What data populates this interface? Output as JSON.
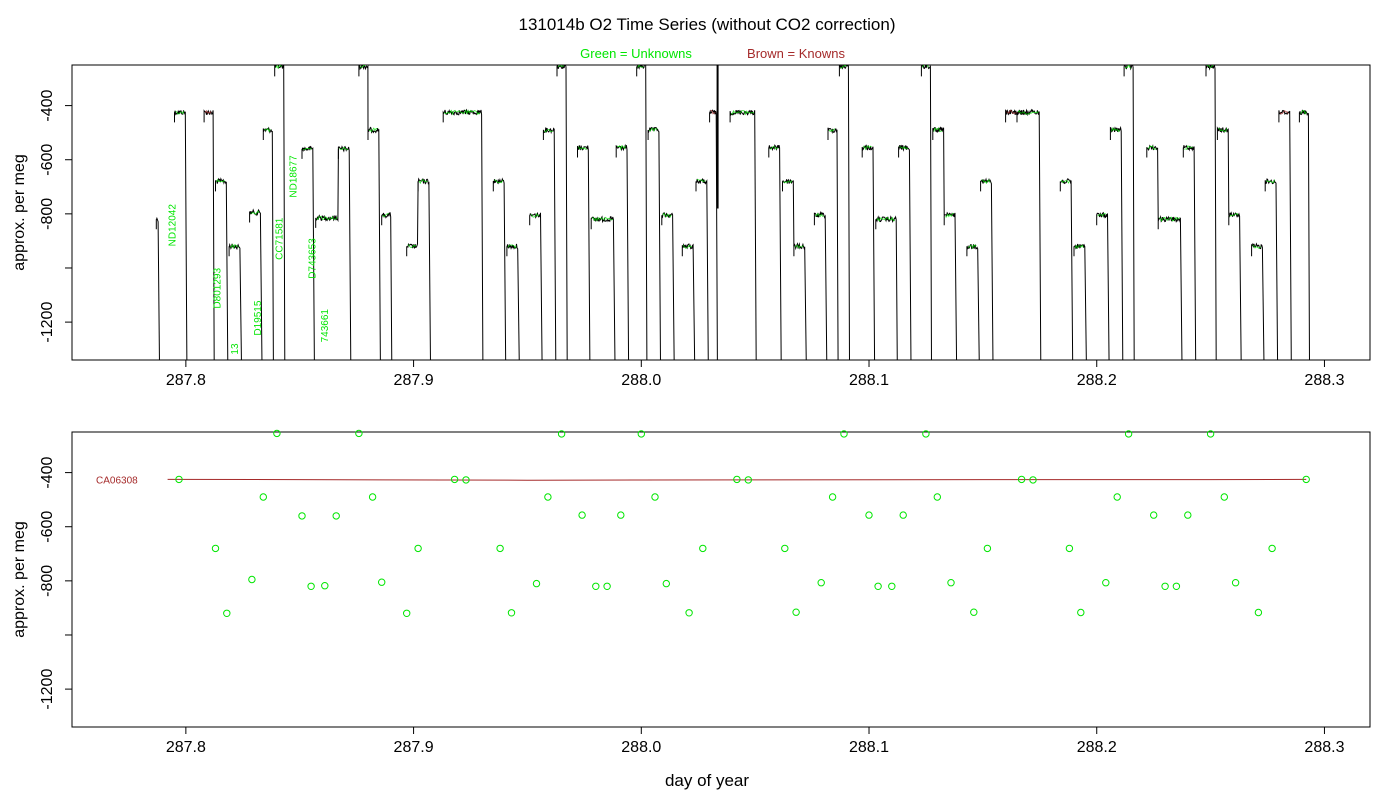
{
  "title": "131014b   O2 Time Series (without CO2 correction)",
  "legend": {
    "unknowns": "Green = Unknowns",
    "knowns": "Brown = Knowns"
  },
  "colors": {
    "unknown": "#00e600",
    "known": "#a52a2a",
    "trace": "#000000",
    "axis": "#000000"
  },
  "xlabel": "day of year",
  "chart_data": [
    {
      "type": "line",
      "ylabel": "approx. per meg",
      "xlim": [
        287.75,
        288.32
      ],
      "ylim": [
        -1340,
        -250
      ],
      "x_ticks": [
        287.8,
        287.9,
        288.0,
        288.1,
        288.2,
        288.3
      ],
      "x_tick_labels": [
        "287.8",
        "287.9",
        "288.0",
        "288.1",
        "288.2",
        "288.3"
      ],
      "y_ticks": [
        -400,
        -600,
        -800,
        -1000,
        -1200
      ],
      "y_tick_labels": [
        "-400",
        "-600",
        "-800",
        "",
        "-1200"
      ],
      "sample_labels": [
        {
          "text": "ND12042",
          "x": 287.7955,
          "y": -920
        },
        {
          "text": "D801293",
          "x": 287.8153,
          "y": -1150
        },
        {
          "text": "CC71581",
          "x": 287.8425,
          "y": -970
        },
        {
          "text": "ND18677",
          "x": 287.8485,
          "y": -740
        },
        {
          "text": "D743653",
          "x": 287.857,
          "y": -1040
        },
        {
          "text": "D19515",
          "x": 287.833,
          "y": -1250
        },
        {
          "text": "743661",
          "x": 287.8625,
          "y": -1275
        },
        {
          "text": "13",
          "x": 287.823,
          "y": -1320
        }
      ],
      "spike": {
        "x": 288.0335,
        "y_top": -250,
        "y_bottom": -780
      },
      "segments": [
        {
          "x": [
            287.787,
            287.788
          ],
          "y": -820,
          "class": "unknown"
        },
        {
          "x": [
            287.795,
            287.8
          ],
          "y": -425,
          "class": "unknown"
        },
        {
          "x": [
            287.808,
            287.812
          ],
          "y": -425,
          "class": "known"
        },
        {
          "x": [
            287.813,
            287.818
          ],
          "y": -680,
          "class": "unknown"
        },
        {
          "x": [
            287.819,
            287.824
          ],
          "y": -920,
          "class": "unknown"
        },
        {
          "x": [
            287.828,
            287.833
          ],
          "y": -795,
          "class": "unknown"
        },
        {
          "x": [
            287.834,
            287.838
          ],
          "y": -490,
          "class": "unknown"
        },
        {
          "x": [
            287.839,
            287.843
          ],
          "y": -255,
          "class": "unknown"
        },
        {
          "x": [
            287.851,
            287.856
          ],
          "y": -560,
          "class": "unknown"
        },
        {
          "x": [
            287.857,
            287.867
          ],
          "y": -815,
          "class": "unknown"
        },
        {
          "x": [
            287.867,
            287.872
          ],
          "y": -560,
          "class": "unknown"
        },
        {
          "x": [
            287.876,
            287.88
          ],
          "y": -255,
          "class": "unknown"
        },
        {
          "x": [
            287.88,
            287.885
          ],
          "y": -490,
          "class": "unknown"
        },
        {
          "x": [
            287.886,
            287.89
          ],
          "y": -805,
          "class": "unknown"
        },
        {
          "x": [
            287.897,
            287.902
          ],
          "y": -920,
          "class": "unknown"
        },
        {
          "x": [
            287.902,
            287.907
          ],
          "y": -680,
          "class": "unknown"
        },
        {
          "x": [
            287.913,
            287.93
          ],
          "y": -425,
          "class": "unknown"
        },
        {
          "x": [
            287.935,
            287.94
          ],
          "y": -680,
          "class": "unknown"
        },
        {
          "x": [
            287.941,
            287.946
          ],
          "y": -920,
          "class": "unknown"
        },
        {
          "x": [
            287.951,
            287.956
          ],
          "y": -805,
          "class": "unknown"
        },
        {
          "x": [
            287.957,
            287.962
          ],
          "y": -490,
          "class": "unknown"
        },
        {
          "x": [
            287.963,
            287.967
          ],
          "y": -255,
          "class": "unknown"
        },
        {
          "x": [
            287.972,
            287.977
          ],
          "y": -555,
          "class": "unknown"
        },
        {
          "x": [
            287.978,
            287.988
          ],
          "y": -820,
          "class": "unknown"
        },
        {
          "x": [
            287.989,
            287.994
          ],
          "y": -555,
          "class": "unknown"
        },
        {
          "x": [
            287.998,
            288.002
          ],
          "y": -255,
          "class": "unknown"
        },
        {
          "x": [
            288.003,
            288.008
          ],
          "y": -490,
          "class": "unknown"
        },
        {
          "x": [
            288.009,
            288.014
          ],
          "y": -805,
          "class": "unknown"
        },
        {
          "x": [
            288.018,
            288.023
          ],
          "y": -920,
          "class": "unknown"
        },
        {
          "x": [
            288.024,
            288.029
          ],
          "y": -680,
          "class": "unknown"
        },
        {
          "x": [
            288.03,
            288.033
          ],
          "y": -425,
          "class": "known"
        },
        {
          "x": [
            288.039,
            288.05
          ],
          "y": -425,
          "class": "unknown"
        },
        {
          "x": [
            288.056,
            288.061
          ],
          "y": -555,
          "class": "unknown"
        },
        {
          "x": [
            288.062,
            288.067
          ],
          "y": -680,
          "class": "unknown"
        },
        {
          "x": [
            288.067,
            288.072
          ],
          "y": -920,
          "class": "unknown"
        },
        {
          "x": [
            288.076,
            288.081
          ],
          "y": -805,
          "class": "unknown"
        },
        {
          "x": [
            288.082,
            288.086
          ],
          "y": -490,
          "class": "unknown"
        },
        {
          "x": [
            288.087,
            288.091
          ],
          "y": -255,
          "class": "unknown"
        },
        {
          "x": [
            288.097,
            288.102
          ],
          "y": -555,
          "class": "unknown"
        },
        {
          "x": [
            288.103,
            288.112
          ],
          "y": -820,
          "class": "unknown"
        },
        {
          "x": [
            288.113,
            288.118
          ],
          "y": -555,
          "class": "unknown"
        },
        {
          "x": [
            288.123,
            288.127
          ],
          "y": -255,
          "class": "unknown"
        },
        {
          "x": [
            288.128,
            288.133
          ],
          "y": -490,
          "class": "unknown"
        },
        {
          "x": [
            288.133,
            288.138
          ],
          "y": -805,
          "class": "unknown"
        },
        {
          "x": [
            288.143,
            288.148
          ],
          "y": -920,
          "class": "unknown"
        },
        {
          "x": [
            288.149,
            288.154
          ],
          "y": -680,
          "class": "unknown"
        },
        {
          "x": [
            288.16,
            288.17
          ],
          "y": -425,
          "class": "known"
        },
        {
          "x": [
            288.165,
            288.175
          ],
          "y": -425,
          "class": "unknown"
        },
        {
          "x": [
            288.184,
            288.189
          ],
          "y": -680,
          "class": "unknown"
        },
        {
          "x": [
            288.19,
            288.195
          ],
          "y": -920,
          "class": "unknown"
        },
        {
          "x": [
            288.2,
            288.205
          ],
          "y": -805,
          "class": "unknown"
        },
        {
          "x": [
            288.206,
            288.211
          ],
          "y": -490,
          "class": "unknown"
        },
        {
          "x": [
            288.212,
            288.216
          ],
          "y": -255,
          "class": "unknown"
        },
        {
          "x": [
            288.222,
            288.227
          ],
          "y": -555,
          "class": "unknown"
        },
        {
          "x": [
            288.227,
            288.237
          ],
          "y": -820,
          "class": "unknown"
        },
        {
          "x": [
            288.238,
            288.243
          ],
          "y": -555,
          "class": "unknown"
        },
        {
          "x": [
            288.248,
            288.252
          ],
          "y": -255,
          "class": "unknown"
        },
        {
          "x": [
            288.253,
            288.258
          ],
          "y": -490,
          "class": "unknown"
        },
        {
          "x": [
            288.258,
            288.263
          ],
          "y": -805,
          "class": "unknown"
        },
        {
          "x": [
            288.268,
            288.273
          ],
          "y": -920,
          "class": "unknown"
        },
        {
          "x": [
            288.274,
            288.279
          ],
          "y": -680,
          "class": "unknown"
        },
        {
          "x": [
            288.28,
            288.285
          ],
          "y": -425,
          "class": "known"
        },
        {
          "x": [
            288.289,
            288.293
          ],
          "y": -425,
          "class": "unknown"
        }
      ]
    },
    {
      "type": "scatter",
      "ylabel": "approx. per meg",
      "xlim": [
        287.75,
        288.32
      ],
      "ylim": [
        -1340,
        -250
      ],
      "x_ticks": [
        287.8,
        287.9,
        288.0,
        288.1,
        288.2,
        288.3
      ],
      "x_tick_labels": [
        "287.8",
        "287.9",
        "288.0",
        "288.1",
        "288.2",
        "288.3"
      ],
      "y_ticks": [
        -400,
        -600,
        -800,
        -1000,
        -1200
      ],
      "y_tick_labels": [
        "-400",
        "-600",
        "-800",
        "",
        "-1200"
      ],
      "reference_line": {
        "name": "CA06308",
        "x": [
          287.792,
          287.85,
          287.95,
          288.05,
          288.15,
          288.25,
          288.292
        ],
        "y": [
          -425,
          -426,
          -428,
          -427,
          -426,
          -426,
          -425
        ]
      },
      "unknowns": {
        "x": [
          287.797,
          287.813,
          287.818,
          287.829,
          287.834,
          287.84,
          287.851,
          287.855,
          287.861,
          287.866,
          287.876,
          287.882,
          287.886,
          287.897,
          287.902,
          287.918,
          287.923,
          287.938,
          287.943,
          287.954,
          287.959,
          287.965,
          287.974,
          287.98,
          287.985,
          287.991,
          288.0,
          288.006,
          288.011,
          288.021,
          288.027,
          288.042,
          288.047,
          288.063,
          288.068,
          288.079,
          288.084,
          288.089,
          288.1,
          288.104,
          288.11,
          288.115,
          288.125,
          288.13,
          288.136,
          288.146,
          288.152,
          288.167,
          288.172,
          288.188,
          288.193,
          288.204,
          288.209,
          288.214,
          288.225,
          288.23,
          288.235,
          288.24,
          288.25,
          288.256,
          288.261,
          288.271,
          288.277,
          288.292
        ],
        "y": [
          -425,
          -680,
          -920,
          -795,
          -490,
          -255,
          -560,
          -820,
          -818,
          -560,
          -255,
          -490,
          -805,
          -920,
          -680,
          -425,
          -427,
          -680,
          -918,
          -810,
          -490,
          -257,
          -557,
          -820,
          -820,
          -557,
          -257,
          -490,
          -810,
          -918,
          -680,
          -425,
          -427,
          -680,
          -916,
          -807,
          -490,
          -257,
          -557,
          -820,
          -820,
          -557,
          -257,
          -490,
          -807,
          -916,
          -680,
          -425,
          -427,
          -680,
          -917,
          -807,
          -490,
          -257,
          -557,
          -820,
          -820,
          -557,
          -257,
          -490,
          -807,
          -917,
          -680,
          -425
        ]
      }
    }
  ]
}
